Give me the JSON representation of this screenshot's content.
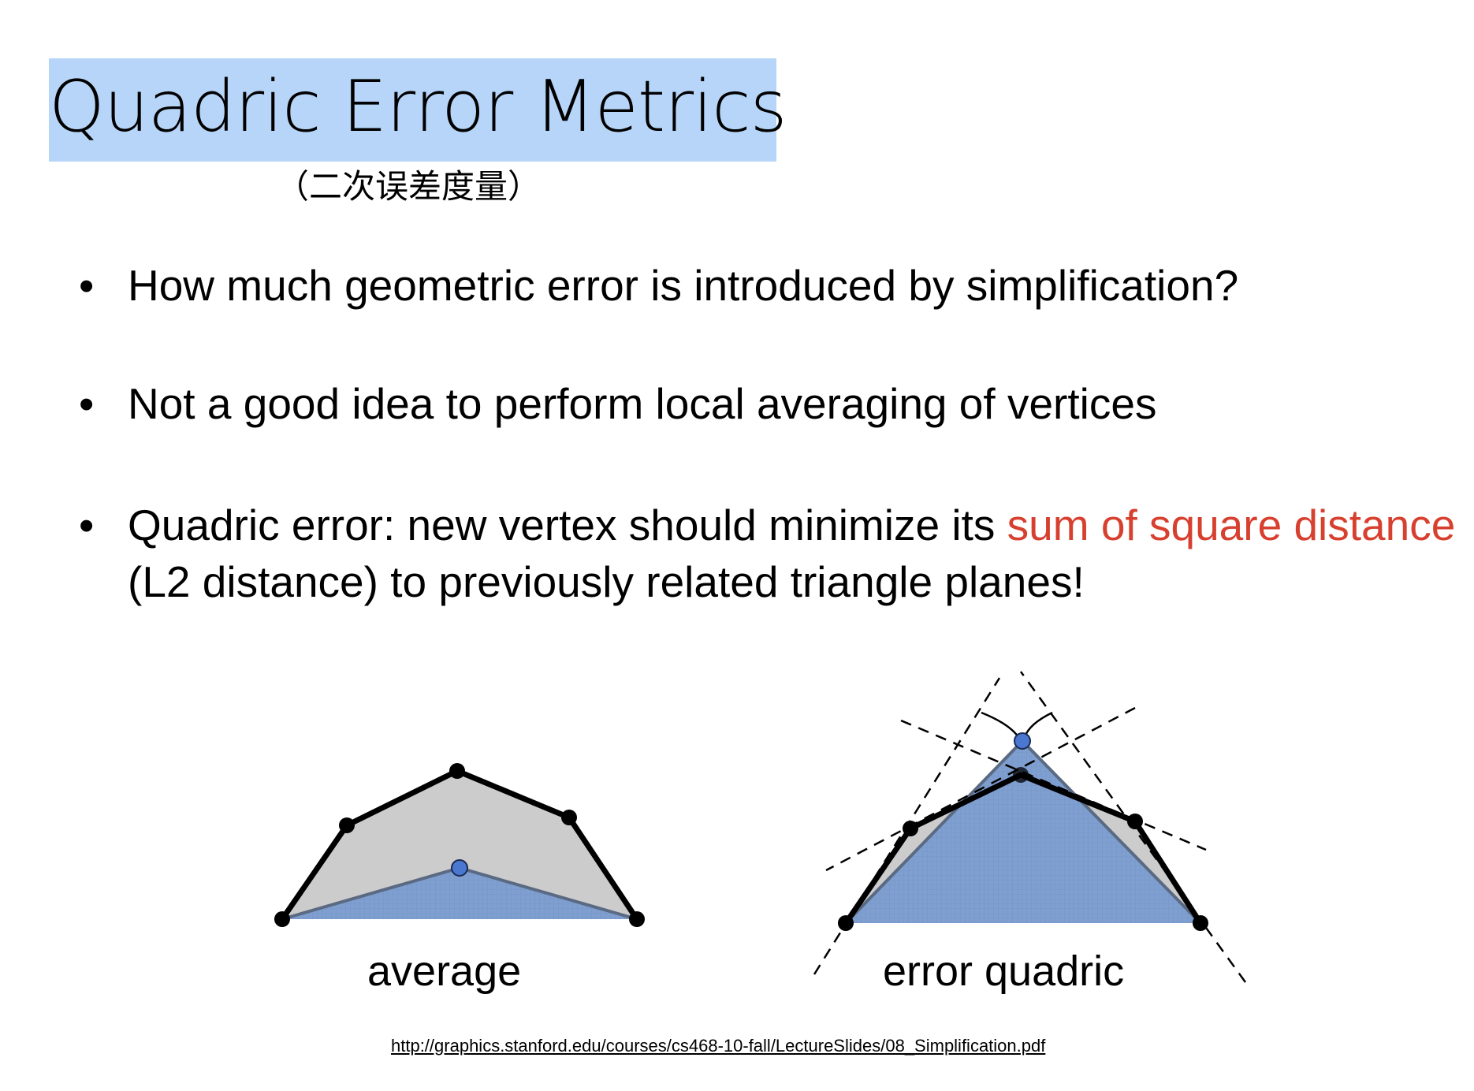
{
  "title": "Quadric Error Metrics",
  "subtitle": "（二次误差度量）",
  "bullets": [
    {
      "symbol": "•",
      "text": "How much geometric error is introduced by simplification?"
    },
    {
      "symbol": "•",
      "text": "Not a good idea to perform local averaging of vertices"
    },
    {
      "symbol": "•",
      "text_before": "Quadric error: new vertex should minimize its ",
      "highlight": "sum of square distance",
      "text_after": " (L2 distance) to previously related triangle planes!"
    }
  ],
  "figures": {
    "average_caption": "average",
    "error_quadric_caption": "error quadric"
  },
  "colors": {
    "title_highlight": "#b7d5f8",
    "emphasis_text": "#d7402f",
    "gray_fill": "#cccccc",
    "blue_fill": "#7f9fd0",
    "vertex_blue": "#4a78d0"
  },
  "source_url": "http://graphics.stanford.edu/courses/cs468-10-fall/LectureSlides/08_Simplification.pdf"
}
